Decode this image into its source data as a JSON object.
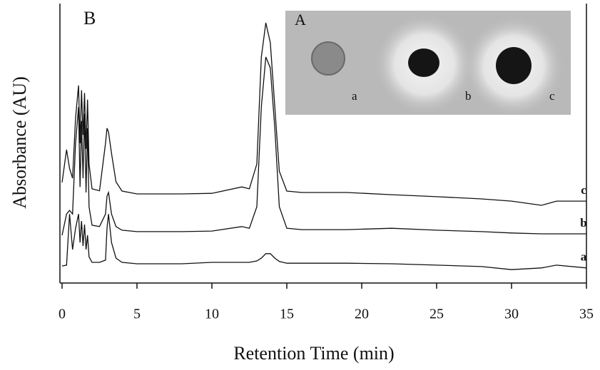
{
  "chart_data": {
    "type": "line",
    "title": "B",
    "x_label": "Retention Time (min)",
    "y_label": "Absorbance (AU)",
    "x": [
      0,
      0.3,
      0.5,
      0.7,
      0.9,
      1.1,
      1.2,
      1.3,
      1.4,
      1.5,
      1.6,
      1.7,
      1.8,
      2.0,
      2.5,
      2.9,
      3.0,
      3.1,
      3.3,
      3.6,
      4,
      5,
      8,
      10,
      12,
      12.5,
      13,
      13.3,
      13.6,
      13.9,
      14.2,
      14.5,
      15,
      16,
      19,
      22,
      25,
      28,
      30,
      32,
      33,
      35
    ],
    "series": [
      {
        "name": "a",
        "color": "#111111",
        "values": [
          6.1,
          6.4,
          24.7,
          12,
          19.6,
          24.7,
          14.5,
          22.2,
          13.3,
          20.9,
          12,
          17.1,
          9.4,
          7.4,
          7.4,
          8.2,
          19.6,
          24.7,
          14.5,
          8.9,
          7.4,
          6.9,
          6.9,
          7.4,
          7.4,
          7.4,
          7.9,
          8.9,
          10.5,
          10.5,
          8.9,
          7.7,
          7.1,
          7.1,
          7.1,
          6.9,
          6.4,
          5.9,
          4.8,
          5.4,
          6.4,
          5.4
        ]
      },
      {
        "name": "b",
        "color": "#111111",
        "values": [
          17.1,
          24.7,
          26,
          24.7,
          50,
          63,
          34.4,
          58,
          37.5,
          60.5,
          32.4,
          55.4,
          27.3,
          20.7,
          20.2,
          24.7,
          31.1,
          32.4,
          24.7,
          20.2,
          18.9,
          18.4,
          18.4,
          18.6,
          20.2,
          19.6,
          27.3,
          63,
          80.9,
          77,
          55.4,
          27.3,
          19.6,
          19.1,
          19.1,
          19.6,
          18.9,
          18.4,
          17.9,
          17.6,
          17.6,
          17.6
        ]
      },
      {
        "name": "c",
        "color": "#111111",
        "values": [
          36,
          47.7,
          41,
          37.5,
          59,
          70.7,
          50,
          69,
          53,
          68,
          48,
          65.6,
          42.6,
          33.7,
          33,
          50,
          55.4,
          54,
          46.4,
          36.2,
          32.9,
          31.9,
          31.9,
          32.1,
          34.4,
          33.7,
          42.6,
          80.9,
          93.1,
          86,
          63,
          40,
          32.9,
          32.4,
          32.4,
          31.6,
          30.9,
          30.1,
          29.3,
          27.8,
          29.3,
          29.3
        ]
      }
    ],
    "xlim": [
      0,
      35
    ],
    "xticks": [
      0,
      5,
      10,
      15,
      20,
      25,
      30,
      35
    ],
    "ylim": [
      0,
      100
    ],
    "grid": false
  },
  "inset": {
    "label": "A",
    "spots": [
      "a",
      "b",
      "c"
    ]
  }
}
